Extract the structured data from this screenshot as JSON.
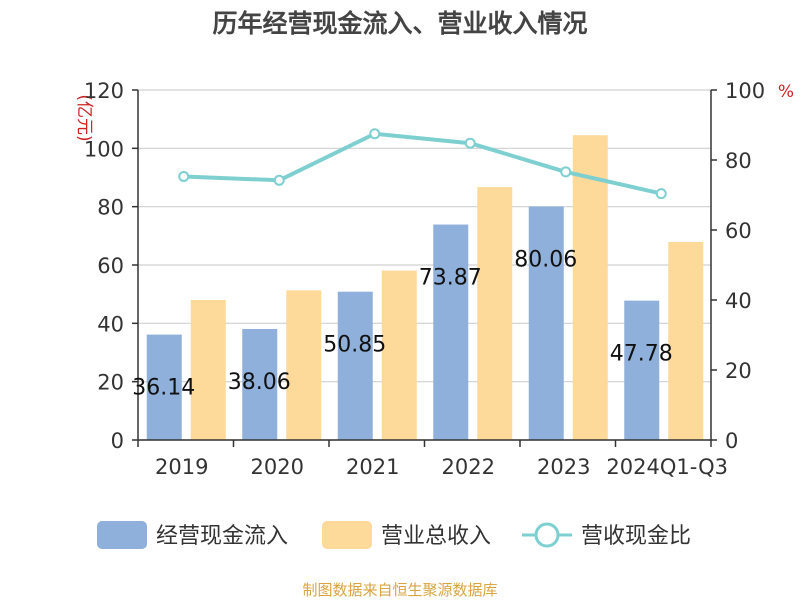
{
  "chart_data": {
    "type": "bar",
    "title": "历年经营现金流入、营业收入情况",
    "left_unit": "(亿元)",
    "right_unit": "%",
    "categories": [
      "2019",
      "2020",
      "2021",
      "2022",
      "2023",
      "2024Q1-Q3"
    ],
    "series": [
      {
        "name": "经营现金流入",
        "type": "bar",
        "axis": "left",
        "color": "#8fb0db",
        "values": [
          36.14,
          38.06,
          50.85,
          73.87,
          80.06,
          47.78
        ],
        "labels": [
          "36.14",
          "38.06",
          "50.85",
          "73.87",
          "80.06",
          "47.78"
        ]
      },
      {
        "name": "营业总收入",
        "type": "bar",
        "axis": "left",
        "color": "#fdd99a",
        "values": [
          48.0,
          51.3,
          58.1,
          86.7,
          104.5,
          67.9
        ]
      },
      {
        "name": "营收现金比",
        "type": "line",
        "axis": "right",
        "color": "#7ecfd0",
        "values": [
          75.3,
          74.2,
          87.5,
          84.8,
          76.6,
          70.4
        ]
      }
    ],
    "y_left": {
      "min": 0,
      "max": 120,
      "ticks": [
        "0",
        "20",
        "40",
        "60",
        "80",
        "100",
        "120"
      ]
    },
    "y_right": {
      "min": 0,
      "max": 100,
      "ticks": [
        "0",
        "20",
        "40",
        "60",
        "80",
        "100"
      ]
    },
    "grid": true,
    "legend_position": "bottom",
    "source": "制图数据来自恒生聚源数据库"
  }
}
